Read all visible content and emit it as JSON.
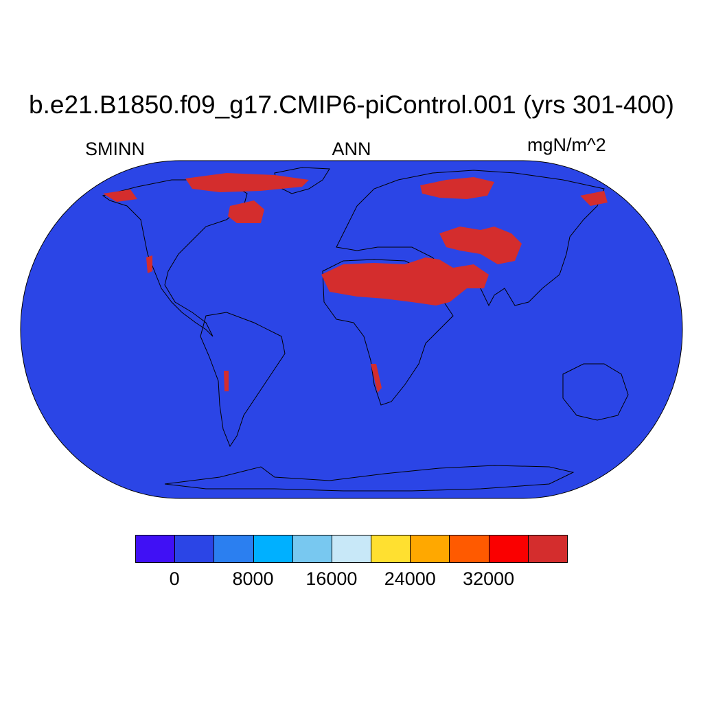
{
  "title": "b.e21.B1850.f09_g17.CMIP6-piControl.001 (yrs 301-400)",
  "left_label": "SMINN",
  "center_label": "ANN",
  "right_label": "mgN/m^2",
  "map": {
    "projection": "Robinson",
    "ocean_color": "#2b45e6",
    "land_fill_color": "#2b45e6",
    "high_value_color": "#d42d2d",
    "coastline_color": "#000000"
  },
  "colorbar": {
    "colors": [
      "#4010f5",
      "#2b45e6",
      "#2b7ff0",
      "#00b0ff",
      "#78c8f0",
      "#c8e8f8",
      "#ffe030",
      "#ffa800",
      "#ff5a00",
      "#fa0000",
      "#d42d2d"
    ],
    "tick_labels": [
      "0",
      "8000",
      "16000",
      "24000",
      "32000"
    ],
    "tick_values": [
      0,
      8000,
      16000,
      24000,
      32000
    ],
    "interval": 4000
  }
}
